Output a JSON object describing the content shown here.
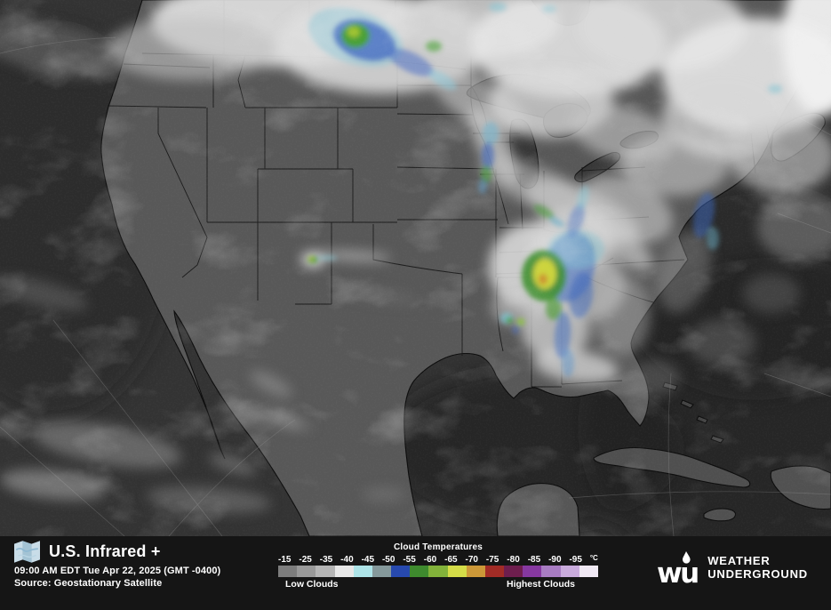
{
  "header": {
    "title": "U.S. Infrared +",
    "timestamp": "09:00 AM EDT Tue Apr 22, 2025 (GMT -0400)",
    "source": "Source: Geostationary Satellite"
  },
  "legend": {
    "title": "Cloud Temperatures",
    "tick_labels": [
      "-15",
      "-25",
      "-35",
      "-40",
      "-45",
      "-50",
      "-55",
      "-60",
      "-65",
      "-70",
      "-75",
      "-80",
      "-85",
      "-90",
      "-95"
    ],
    "unit": "°C",
    "low_label": "Low Clouds",
    "high_label": "Highest Clouds",
    "colors": [
      "#7d7d7d",
      "#999999",
      "#b5b5b5",
      "#e8e8e8",
      "#aee4e8",
      "#85999b",
      "#2749ae",
      "#3e8a2e",
      "#82b23a",
      "#d4dc48",
      "#cc9838",
      "#a22c26",
      "#6e1e4e",
      "#8638a0",
      "#a87cc2",
      "#c9abdc",
      "#f0e9f4"
    ]
  },
  "branding": {
    "logo_text": "wu",
    "name_line1": "WEATHER",
    "name_line2": "UNDERGROUND"
  }
}
